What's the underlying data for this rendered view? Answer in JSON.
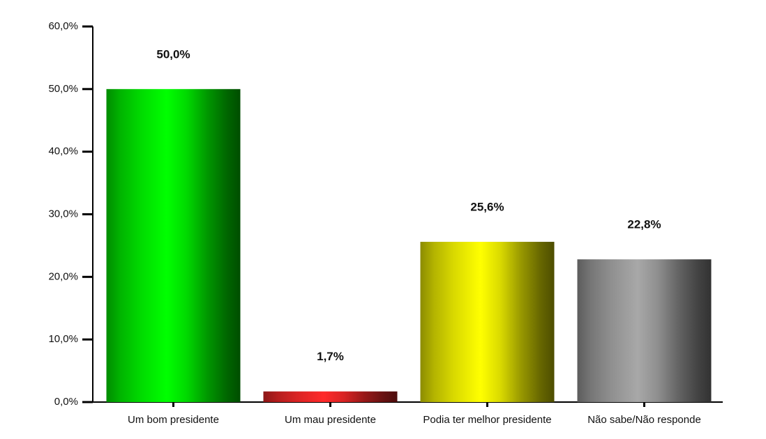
{
  "chart_data": {
    "type": "bar",
    "categories": [
      "Um bom presidente",
      "Um mau presidente",
      "Podia ter melhor presidente",
      "Não sabe/Não responde"
    ],
    "values": [
      50.0,
      1.7,
      25.6,
      22.8
    ],
    "value_labels": [
      "50,0%",
      "1,7%",
      "25,6%",
      "22,8%"
    ],
    "colors": [
      "#00ff00",
      "#ff2a2a",
      "#ffff00",
      "#a8a8a8"
    ],
    "ylim": [
      0,
      60
    ],
    "yticks": [
      {
        "value": 0,
        "label": "0,0%"
      },
      {
        "value": 10,
        "label": "10,0%"
      },
      {
        "value": 20,
        "label": "20,0%"
      },
      {
        "value": 30,
        "label": "30,0%"
      },
      {
        "value": 40,
        "label": "40,0%"
      },
      {
        "value": 50,
        "label": "50,0%"
      },
      {
        "value": 60,
        "label": "60,0%"
      }
    ],
    "grid": false
  }
}
